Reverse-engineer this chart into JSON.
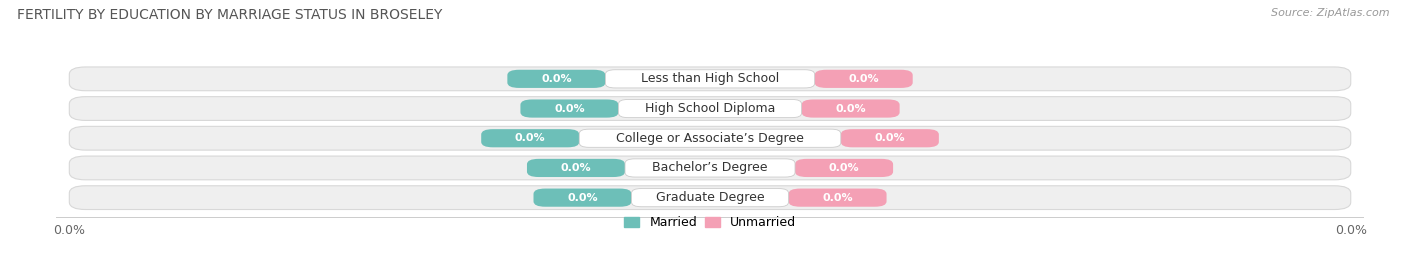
{
  "title": "FERTILITY BY EDUCATION BY MARRIAGE STATUS IN BROSELEY",
  "source": "Source: ZipAtlas.com",
  "categories": [
    "Less than High School",
    "High School Diploma",
    "College or Associate’s Degree",
    "Bachelor’s Degree",
    "Graduate Degree"
  ],
  "married_values": [
    0.0,
    0.0,
    0.0,
    0.0,
    0.0
  ],
  "unmarried_values": [
    0.0,
    0.0,
    0.0,
    0.0,
    0.0
  ],
  "married_color": "#6dbfb8",
  "unmarried_color": "#f4a0b5",
  "row_bg_color": "#efefef",
  "row_edge_color": "#d8d8d8",
  "label_bg_color": "#ffffff",
  "label_edge_color": "#cccccc",
  "label_married": "Married",
  "label_unmarried": "Unmarried",
  "title_fontsize": 10,
  "source_fontsize": 8,
  "tick_fontsize": 9,
  "value_fontsize": 8,
  "category_fontsize": 9,
  "legend_fontsize": 9
}
